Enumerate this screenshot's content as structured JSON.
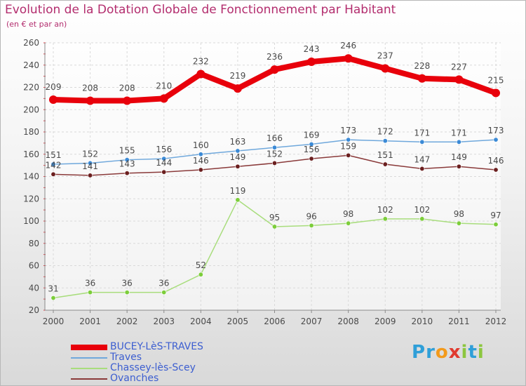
{
  "title": "Evolution de la Dotation Globale de Fonctionnement par Habitant",
  "subtitle": "(en € et par an)",
  "logo_text": "Proxiti",
  "colors": {
    "title": "#b32d6e",
    "legend_text": "#3c5ed0",
    "grid": "#d9d9d9",
    "axis": "#8a8a8a"
  },
  "chart_data": {
    "type": "line",
    "title": "Evolution de la Dotation Globale de Fonctionnement par Habitant",
    "subtitle": "(en € et par an)",
    "xlabel": "",
    "ylabel": "",
    "ylim": [
      20,
      260
    ],
    "yticks": [
      20,
      40,
      60,
      80,
      100,
      120,
      140,
      160,
      180,
      200,
      220,
      240,
      260
    ],
    "grid": true,
    "legend_position": "bottom-left",
    "categories": [
      "2000",
      "2001",
      "2002",
      "2003",
      "2004",
      "2005",
      "2006",
      "2007",
      "2008",
      "2009",
      "2010",
      "2011",
      "2012"
    ],
    "series": [
      {
        "name": "BUCEY-LèS-TRAVES",
        "color": "#e8000b",
        "thick": true,
        "values": [
          209,
          208,
          208,
          210,
          232,
          219,
          236,
          243,
          246,
          237,
          228,
          227,
          215
        ]
      },
      {
        "name": "Traves",
        "color": "#6fa8dc",
        "point_color": "#3b8ad6",
        "values": [
          151,
          152,
          155,
          156,
          160,
          163,
          166,
          169,
          173,
          172,
          171,
          171,
          173
        ]
      },
      {
        "name": "Chassey-lès-Scey",
        "color": "#a8dd7c",
        "point_color": "#7ccd3a",
        "values": [
          31,
          36,
          36,
          36,
          52,
          119,
          95,
          96,
          98,
          102,
          102,
          98,
          97
        ]
      },
      {
        "name": "Ovanches",
        "color": "#8a3a3a",
        "point_color": "#6b1f1f",
        "values": [
          142,
          141,
          143,
          144,
          146,
          149,
          152,
          156,
          159,
          151,
          147,
          149,
          146
        ]
      }
    ]
  }
}
